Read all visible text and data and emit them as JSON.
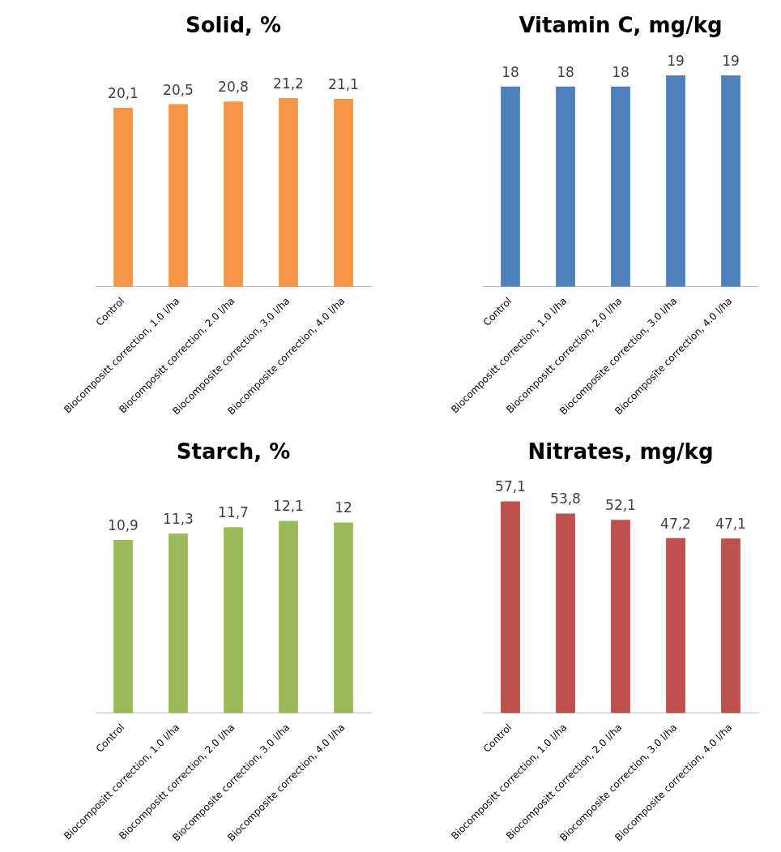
{
  "chart_data": [
    {
      "type": "bar",
      "title": "Solid, %",
      "categories": [
        "Control",
        "Biocompositt correction, 1.0 l/ha",
        "Biocompositt correction, 2.0 l/ha",
        "Biocomposite correction, 3.0 l/ha",
        "Biocomposite correction, 4.0 l/ha"
      ],
      "values": [
        20.1,
        20.5,
        20.8,
        21.2,
        21.1
      ],
      "value_labels": [
        "20,1",
        "20,5",
        "20,8",
        "21,2",
        "21,1"
      ],
      "color": "#f79646"
    },
    {
      "type": "bar",
      "title": "Vitamin C, mg/kg",
      "categories": [
        "Control",
        "Biocompositt correction, 1.0 l/ha",
        "Biocompositt correction, 2.0 l/ha",
        "Biocomposite correction, 3.0 l/ha",
        "Biocomposite correction, 4.0 l/ha"
      ],
      "values": [
        18,
        18,
        18,
        19,
        19
      ],
      "data_labels": true,
      "color": "#4f81bd"
    },
    {
      "type": "bar",
      "title": "Starch, %",
      "categories": [
        "Control",
        "Biocompositt correction, 1.0 l/ha",
        "Biocompositt correction, 2.0 l/ha",
        "Biocomposite correction, 3.0 l/ha",
        "Biocomposite correction, 4.0 l/ha"
      ],
      "values": [
        10.9,
        11.3,
        11.7,
        12.1,
        12
      ],
      "value_labels": [
        "10,9",
        "11,3",
        "11,7",
        "12,1",
        "12"
      ],
      "color": "#9bbb59"
    },
    {
      "type": "bar",
      "title": "Nitrates, mg/kg",
      "categories": [
        "Control",
        "Biocompositt correction, 1.0 l/ha",
        "Biocompositt correction, 2.0 l/ha",
        "Biocomposite correction, 3.0 l/ha",
        "Biocomposite correction, 4.0 l/ha"
      ],
      "values": [
        57.1,
        53.8,
        52.1,
        47.2,
        47.1
      ],
      "value_labels": [
        "57,1",
        "53,8",
        "52,1",
        "47,2",
        "47,1"
      ],
      "color": "#c0504d"
    }
  ]
}
